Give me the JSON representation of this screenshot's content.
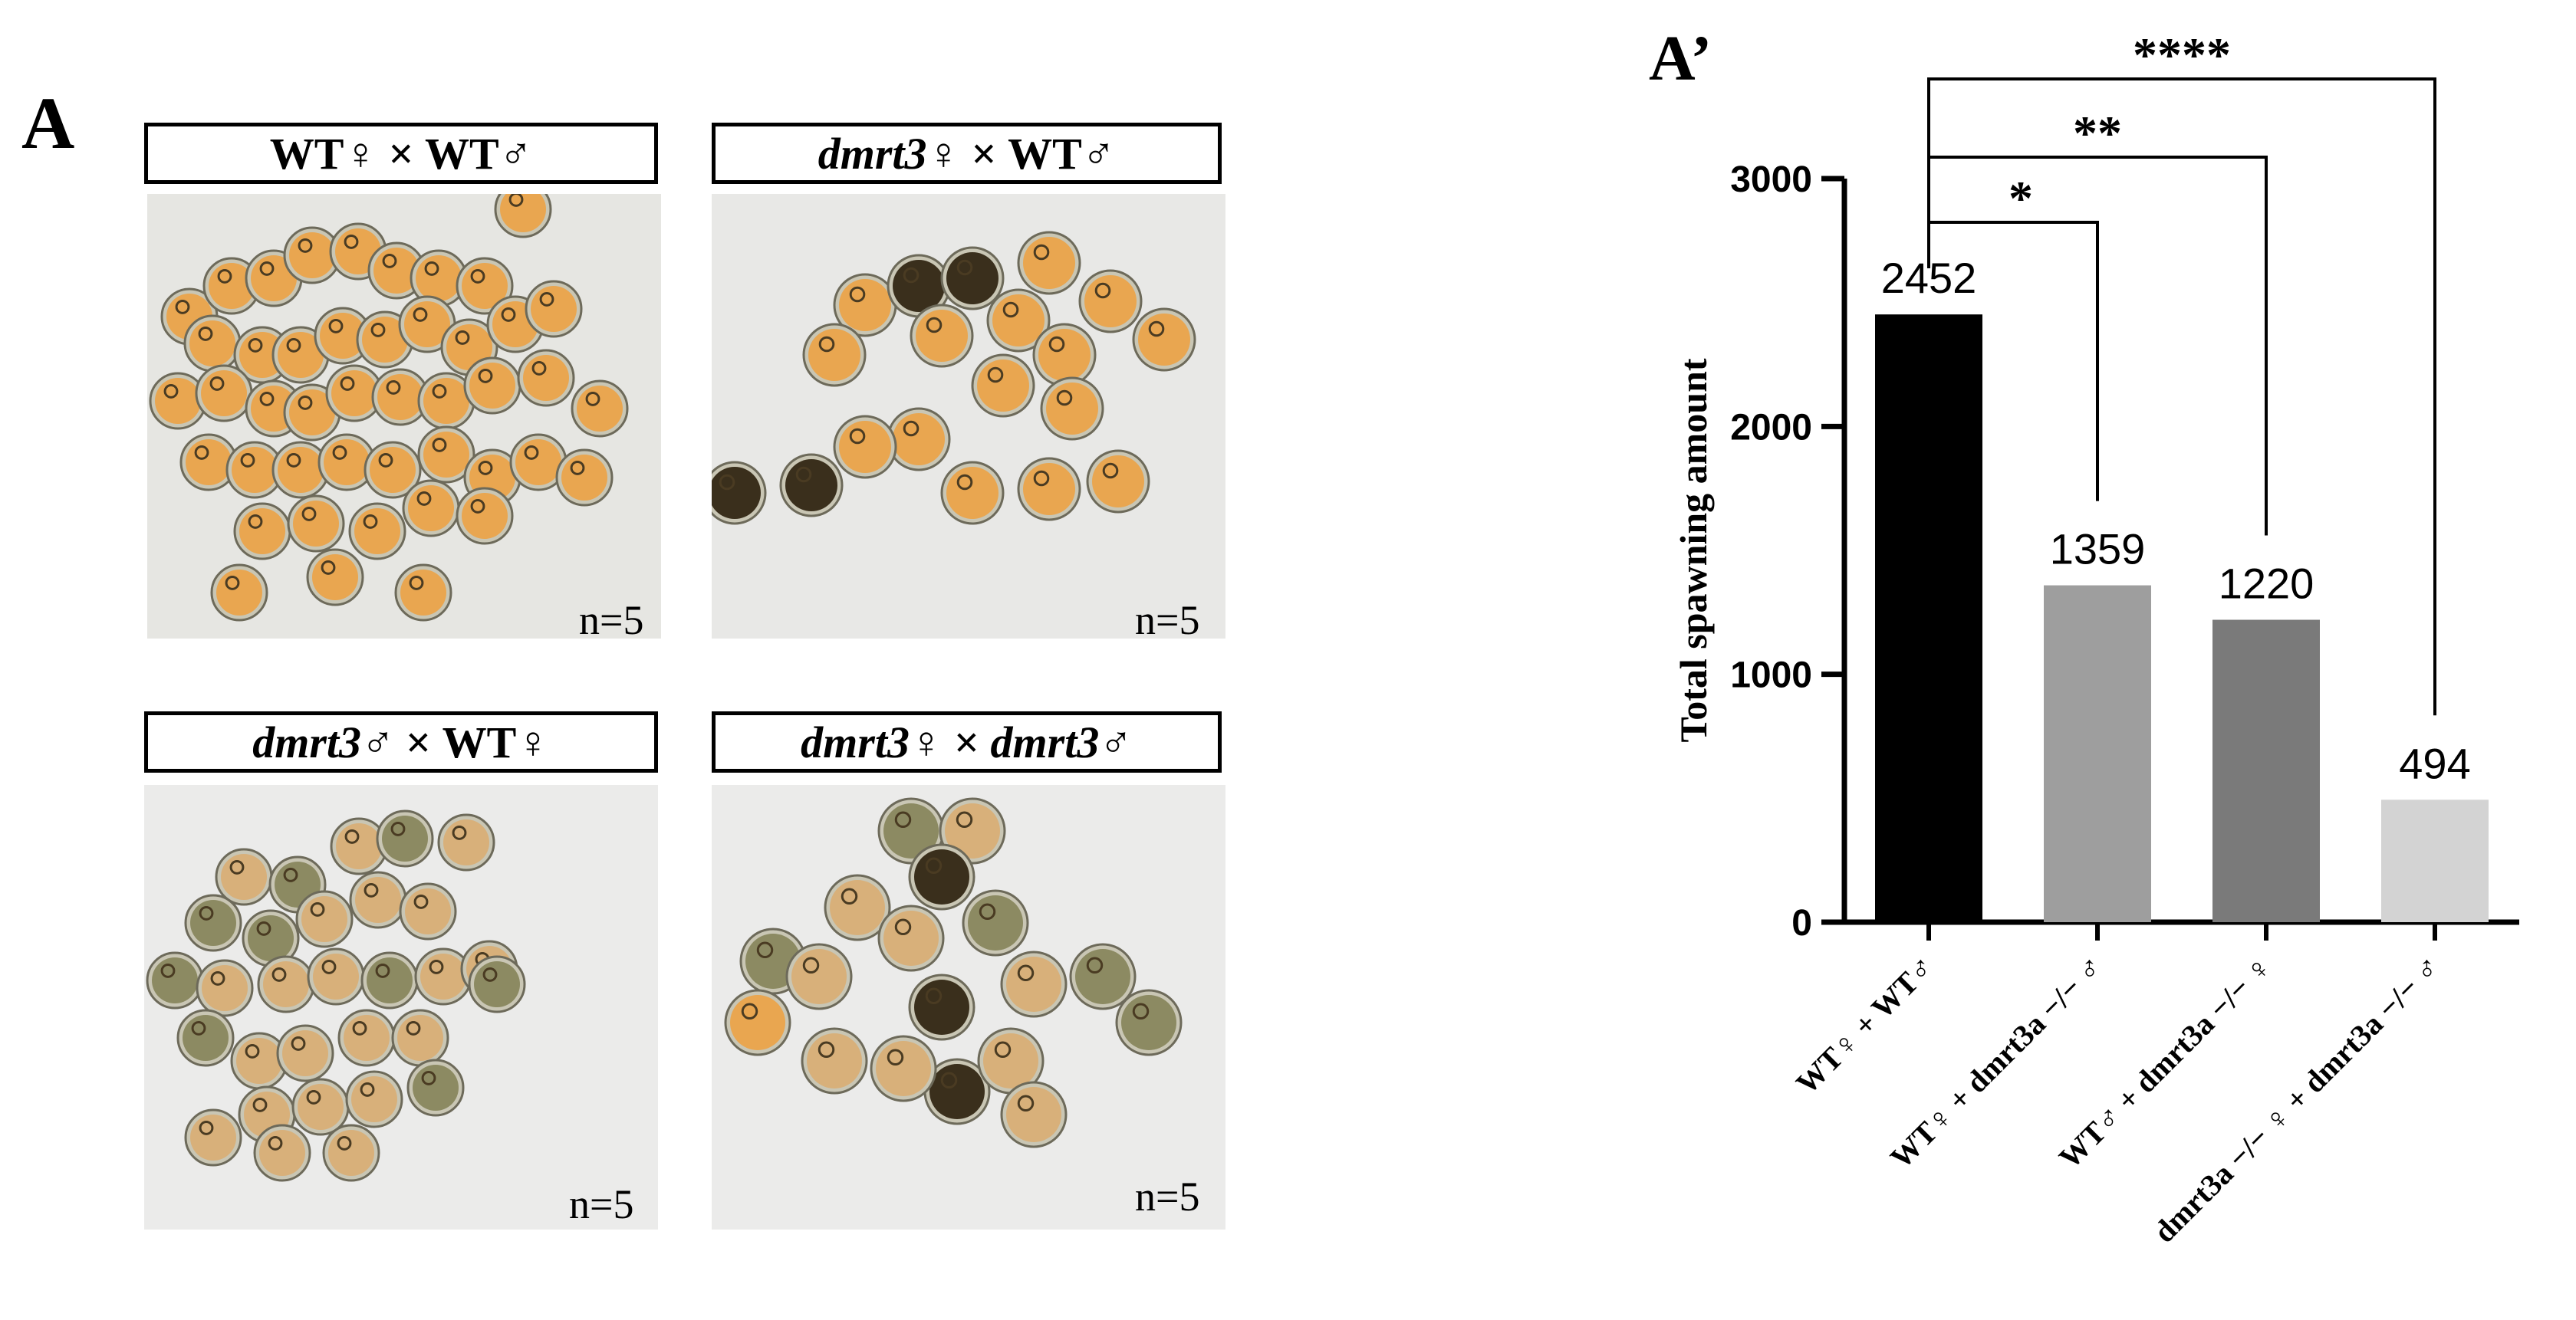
{
  "panel_a": {
    "letter": "A",
    "photos": [
      {
        "part1": "WT♀",
        "sep": " × ",
        "part2": "WT♂",
        "n": "n=5"
      },
      {
        "part1": "dmrt3♀",
        "sep": " × ",
        "part2": "WT♂",
        "n": "n=5"
      },
      {
        "part1": "dmrt3♂",
        "sep": " × ",
        "part2": "WT♀",
        "n": "n=5"
      },
      {
        "part1": "dmrt3♀",
        "sep": " × ",
        "part2": "dmrt3♂",
        "n": "n=5"
      }
    ]
  },
  "panel_a_prime": {
    "letter": "A’"
  },
  "chart_data": {
    "type": "bar",
    "title": "",
    "xlabel": "",
    "ylabel": "Total spawning amount",
    "ylim": [
      0,
      3000
    ],
    "yticks": [
      0,
      1000,
      2000,
      3000
    ],
    "categories": [
      "WT♀ + WT♂",
      "WT♀ + dmrt3a −/− ♂",
      "WT♂ + dmrt3a −/− ♀",
      "dmrt3a −/− ♀ + dmrt3a −/− ♂"
    ],
    "values": [
      2452,
      1359,
      1220,
      494
    ],
    "value_labels": [
      "2452",
      "1359",
      "1220",
      "494"
    ],
    "colors": [
      "#000000",
      "#9e9e9e",
      "#7a7a7a",
      "#d3d3d3"
    ],
    "significance": [
      {
        "from": 0,
        "to": 1,
        "label": "*"
      },
      {
        "from": 0,
        "to": 2,
        "label": "**"
      },
      {
        "from": 0,
        "to": 3,
        "label": "****"
      }
    ]
  }
}
